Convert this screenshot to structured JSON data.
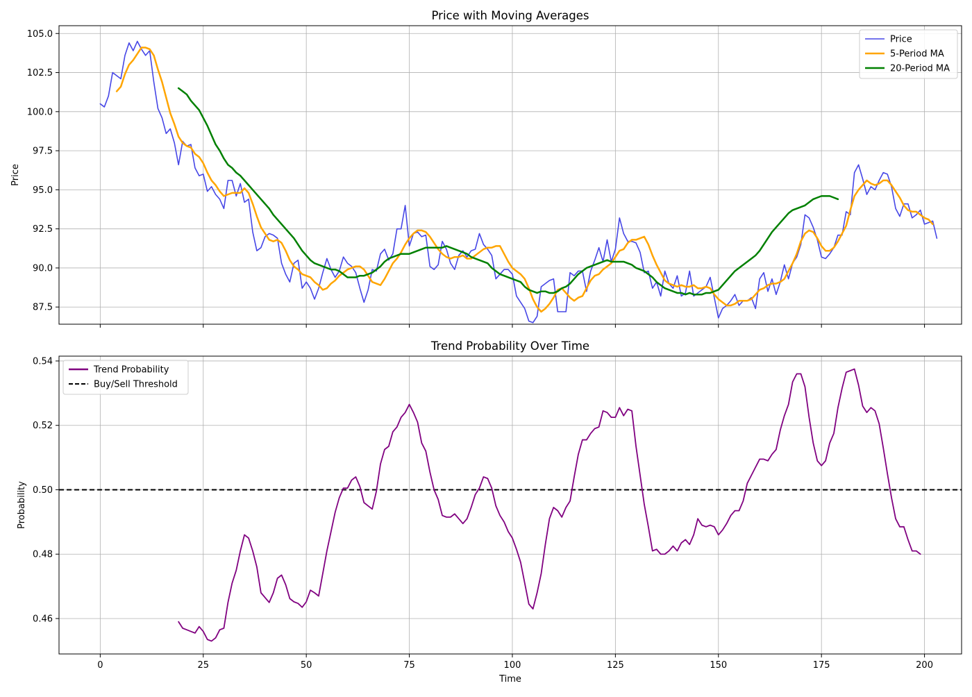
{
  "chart_data": [
    {
      "type": "line",
      "title": "Price with Moving Averages",
      "xlabel": "",
      "ylabel": "Price",
      "xlim": [
        -10,
        209
      ],
      "ylim": [
        86.4,
        105.5
      ],
      "xticks": [
        0,
        25,
        50,
        75,
        100,
        125,
        150,
        175,
        200
      ],
      "xtick_labels_visible": false,
      "yticks": [
        87.5,
        90.0,
        92.5,
        95.0,
        97.5,
        100.0,
        102.5,
        105.0
      ],
      "ytick_labels": [
        "87.5",
        "90.0",
        "92.5",
        "95.0",
        "97.5",
        "100.0",
        "102.5",
        "105.0"
      ],
      "grid": true,
      "legend_position": "top-right",
      "series": [
        {
          "name": "Price",
          "color": "#4646e6",
          "x_start": 0,
          "values": [
            100.5,
            100.3,
            101.0,
            102.5,
            102.3,
            102.1,
            103.6,
            104.4,
            103.9,
            104.5,
            104.0,
            103.6,
            103.9,
            101.9,
            100.2,
            99.6,
            98.6,
            98.9,
            98.0,
            96.6,
            98.1,
            97.8,
            97.9,
            96.4,
            95.9,
            96.0,
            94.9,
            95.2,
            94.7,
            94.4,
            93.8,
            95.6,
            95.6,
            94.6,
            95.4,
            94.2,
            94.4,
            92.3,
            91.1,
            91.3,
            92.0,
            92.2,
            92.1,
            91.9,
            90.3,
            89.6,
            89.1,
            90.3,
            90.5,
            88.7,
            89.1,
            88.7,
            88.0,
            88.7,
            89.7,
            90.6,
            89.9,
            89.4,
            89.8,
            90.7,
            90.3,
            90.1,
            89.7,
            88.7,
            87.8,
            88.6,
            89.9,
            89.8,
            90.9,
            91.2,
            90.5,
            90.9,
            92.5,
            92.5,
            94.0,
            91.4,
            92.2,
            92.3,
            92.0,
            92.1,
            90.1,
            89.9,
            90.2,
            91.7,
            91.2,
            90.3,
            89.9,
            90.8,
            91.1,
            90.7,
            91.1,
            91.2,
            92.2,
            91.5,
            91.2,
            90.8,
            89.3,
            89.6,
            89.9,
            89.9,
            89.6,
            88.2,
            87.8,
            87.4,
            86.6,
            86.5,
            86.9,
            88.8,
            89.0,
            89.2,
            89.3,
            87.2,
            87.2,
            87.2,
            89.7,
            89.5,
            89.8,
            89.8,
            88.5,
            89.8,
            90.5,
            91.3,
            90.4,
            91.8,
            90.4,
            91.2,
            93.2,
            92.2,
            91.7,
            91.7,
            91.6,
            91.0,
            89.7,
            89.8,
            88.7,
            89.1,
            88.2,
            89.8,
            89.0,
            88.7,
            89.5,
            88.2,
            88.4,
            89.8,
            88.2,
            88.4,
            88.6,
            88.8,
            89.4,
            88.1,
            86.8,
            87.4,
            87.6,
            87.9,
            88.3,
            87.6,
            87.9,
            87.9,
            88.1,
            87.4,
            89.3,
            89.7,
            88.5,
            89.3,
            88.3,
            89.1,
            90.2,
            89.3,
            90.3,
            90.7,
            91.5,
            93.4,
            93.2,
            92.6,
            91.8,
            90.7,
            90.6,
            90.9,
            91.3,
            92.1,
            92.1,
            93.6,
            93.4,
            96.1,
            96.6,
            95.7,
            94.7,
            95.2,
            95.0,
            95.6,
            96.1,
            96.0,
            95.2,
            93.8,
            93.3,
            94.1,
            94.1,
            93.2,
            93.4,
            93.7,
            92.8,
            92.9,
            93.0,
            91.9
          ]
        },
        {
          "name": "5-Period MA",
          "color": "#ffa500",
          "x_start": 4,
          "values": [
            101.3,
            101.6,
            102.4,
            103.0,
            103.3,
            103.7,
            104.1,
            104.1,
            104.0,
            103.6,
            102.7,
            101.9,
            100.9,
            99.9,
            99.2,
            98.4,
            98.0,
            97.8,
            97.7,
            97.3,
            97.1,
            96.7,
            96.1,
            95.6,
            95.3,
            94.9,
            94.6,
            94.7,
            94.8,
            94.8,
            94.8,
            95.1,
            94.8,
            94.1,
            93.3,
            92.6,
            92.2,
            91.8,
            91.7,
            91.8,
            91.6,
            91.1,
            90.5,
            90.1,
            89.9,
            89.6,
            89.5,
            89.4,
            89.1,
            88.9,
            88.6,
            88.7,
            89.0,
            89.2,
            89.5,
            89.7,
            89.9,
            90.0,
            90.1,
            90.1,
            89.9,
            89.5,
            89.1,
            89.0,
            88.9,
            89.3,
            89.8,
            90.3,
            90.6,
            91.0,
            91.5,
            91.9,
            92.2,
            92.4,
            92.4,
            92.3,
            92.0,
            91.6,
            91.2,
            90.9,
            90.7,
            90.6,
            90.7,
            90.7,
            90.8,
            90.6,
            90.6,
            90.8,
            91.0,
            91.2,
            91.3,
            91.3,
            91.4,
            91.4,
            90.9,
            90.4,
            90.0,
            89.8,
            89.6,
            89.3,
            88.7,
            88.0,
            87.5,
            87.2,
            87.4,
            87.7,
            88.1,
            88.6,
            88.7,
            88.4,
            88.1,
            87.9,
            88.1,
            88.2,
            88.7,
            89.2,
            89.5,
            89.6,
            89.9,
            90.1,
            90.3,
            90.7,
            91.1,
            91.2,
            91.6,
            91.8,
            91.8,
            91.9,
            92.0,
            91.5,
            90.8,
            90.2,
            89.7,
            89.2,
            89.0,
            88.9,
            88.8,
            88.9,
            88.8,
            88.8,
            88.9,
            88.7,
            88.7,
            88.8,
            88.7,
            88.3,
            88.0,
            87.8,
            87.6,
            87.6,
            87.7,
            87.9,
            87.9,
            87.9,
            88.0,
            88.3,
            88.6,
            88.7,
            88.9,
            89.0,
            89.0,
            89.1,
            89.3,
            89.8,
            90.3,
            90.9,
            91.7,
            92.2,
            92.4,
            92.3,
            91.9,
            91.4,
            91.1,
            91.1,
            91.3,
            91.7,
            92.2,
            92.7,
            93.7,
            94.6,
            95.0,
            95.3,
            95.6,
            95.4,
            95.3,
            95.4,
            95.6,
            95.6,
            95.3,
            94.9,
            94.5,
            94.0,
            93.7,
            93.6,
            93.6,
            93.4,
            93.2,
            93.1,
            92.8
          ]
        },
        {
          "name": "20-Period MA",
          "color": "#008000",
          "x_start": 19,
          "values": [
            101.5,
            101.3,
            101.1,
            100.7,
            100.4,
            100.1,
            99.6,
            99.1,
            98.5,
            97.9,
            97.5,
            97.0,
            96.6,
            96.4,
            96.1,
            95.9,
            95.6,
            95.3,
            95.0,
            94.7,
            94.4,
            94.1,
            93.8,
            93.4,
            93.1,
            92.8,
            92.5,
            92.2,
            91.9,
            91.5,
            91.1,
            90.8,
            90.5,
            90.3,
            90.2,
            90.1,
            90.0,
            89.9,
            89.9,
            89.8,
            89.6,
            89.4,
            89.4,
            89.4,
            89.5,
            89.5,
            89.6,
            89.7,
            89.9,
            90.1,
            90.4,
            90.6,
            90.7,
            90.8,
            90.9,
            90.9,
            90.9,
            91.0,
            91.1,
            91.2,
            91.3,
            91.3,
            91.3,
            91.3,
            91.3,
            91.4,
            91.3,
            91.2,
            91.1,
            91.0,
            90.9,
            90.7,
            90.6,
            90.5,
            90.4,
            90.3,
            90.0,
            89.8,
            89.6,
            89.5,
            89.4,
            89.3,
            89.2,
            89.1,
            88.8,
            88.6,
            88.5,
            88.4,
            88.5,
            88.5,
            88.4,
            88.4,
            88.5,
            88.7,
            88.8,
            89.0,
            89.3,
            89.6,
            89.8,
            90.0,
            90.1,
            90.2,
            90.3,
            90.4,
            90.5,
            90.4,
            90.4,
            90.4,
            90.4,
            90.3,
            90.2,
            90.0,
            89.9,
            89.8,
            89.6,
            89.4,
            89.1,
            88.9,
            88.7,
            88.6,
            88.5,
            88.4,
            88.4,
            88.3,
            88.4,
            88.3,
            88.3,
            88.3,
            88.4,
            88.4,
            88.5,
            88.6,
            88.9,
            89.2,
            89.5,
            89.8,
            90.0,
            90.2,
            90.4,
            90.6,
            90.8,
            91.1,
            91.5,
            91.9,
            92.3,
            92.6,
            92.9,
            93.2,
            93.5,
            93.7,
            93.8,
            93.9,
            94.0,
            94.2,
            94.4,
            94.5,
            94.6,
            94.6,
            94.6,
            94.5,
            94.4
          ]
        }
      ]
    },
    {
      "type": "line",
      "title": "Trend Probability Over Time",
      "xlabel": "Time",
      "ylabel": "Probability",
      "xlim": [
        -10,
        209
      ],
      "ylim": [
        0.449,
        0.5415
      ],
      "xticks": [
        0,
        25,
        50,
        75,
        100,
        125,
        150,
        175,
        200
      ],
      "xtick_labels": [
        "0",
        "25",
        "50",
        "75",
        "100",
        "125",
        "150",
        "175",
        "200"
      ],
      "yticks": [
        0.46,
        0.48,
        0.5,
        0.52,
        0.54
      ],
      "ytick_labels": [
        "0.46",
        "0.48",
        "0.50",
        "0.52",
        "0.54"
      ],
      "grid": true,
      "legend_position": "top-left",
      "threshold": {
        "name": "Buy/Sell Threshold",
        "value": 0.5,
        "color": "#000000",
        "style": "dashed"
      },
      "series": [
        {
          "name": "Trend Probability",
          "color": "#800080",
          "x_start": 19,
          "values": [
            0.459,
            0.457,
            0.4565,
            0.456,
            0.4555,
            0.4575,
            0.456,
            0.4535,
            0.453,
            0.454,
            0.4565,
            0.457,
            0.465,
            0.471,
            0.475,
            0.481,
            0.486,
            0.485,
            0.481,
            0.476,
            0.468,
            0.4665,
            0.465,
            0.468,
            0.4725,
            0.4735,
            0.4705,
            0.4662,
            0.4652,
            0.4647,
            0.4635,
            0.4652,
            0.4688,
            0.468,
            0.467,
            0.474,
            0.481,
            0.487,
            0.493,
            0.4975,
            0.5005,
            0.5005,
            0.503,
            0.504,
            0.501,
            0.496,
            0.495,
            0.494,
            0.4995,
            0.508,
            0.5125,
            0.5135,
            0.518,
            0.5195,
            0.5225,
            0.524,
            0.5265,
            0.524,
            0.521,
            0.5145,
            0.512,
            0.5055,
            0.5,
            0.497,
            0.492,
            0.4915,
            0.4915,
            0.4925,
            0.491,
            0.4895,
            0.491,
            0.4945,
            0.4985,
            0.5005,
            0.504,
            0.5035,
            0.5005,
            0.495,
            0.492,
            0.49,
            0.487,
            0.485,
            0.4815,
            0.4775,
            0.471,
            0.4645,
            0.463,
            0.468,
            0.474,
            0.483,
            0.491,
            0.4945,
            0.4935,
            0.4915,
            0.4945,
            0.4965,
            0.504,
            0.511,
            0.5155,
            0.5155,
            0.5175,
            0.519,
            0.5195,
            0.5245,
            0.524,
            0.5225,
            0.5225,
            0.5255,
            0.523,
            0.525,
            0.5245,
            0.5135,
            0.5045,
            0.4955,
            0.4885,
            0.481,
            0.4815,
            0.48,
            0.48,
            0.481,
            0.4825,
            0.481,
            0.4835,
            0.4845,
            0.483,
            0.486,
            0.491,
            0.489,
            0.4885,
            0.489,
            0.4885,
            0.486,
            0.4875,
            0.4895,
            0.492,
            0.4935,
            0.4935,
            0.4965,
            0.502,
            0.5045,
            0.507,
            0.5095,
            0.5095,
            0.509,
            0.511,
            0.5125,
            0.5185,
            0.523,
            0.5265,
            0.5335,
            0.536,
            0.536,
            0.532,
            0.5225,
            0.5145,
            0.509,
            0.5075,
            0.509,
            0.5145,
            0.5175,
            0.5255,
            0.5315,
            0.5365,
            0.537,
            0.5375,
            0.5325,
            0.526,
            0.524,
            0.5255,
            0.5245,
            0.5205,
            0.513,
            0.505,
            0.4975,
            0.491,
            0.4885,
            0.4885,
            0.4845,
            0.481,
            0.481,
            0.48
          ]
        }
      ]
    }
  ]
}
